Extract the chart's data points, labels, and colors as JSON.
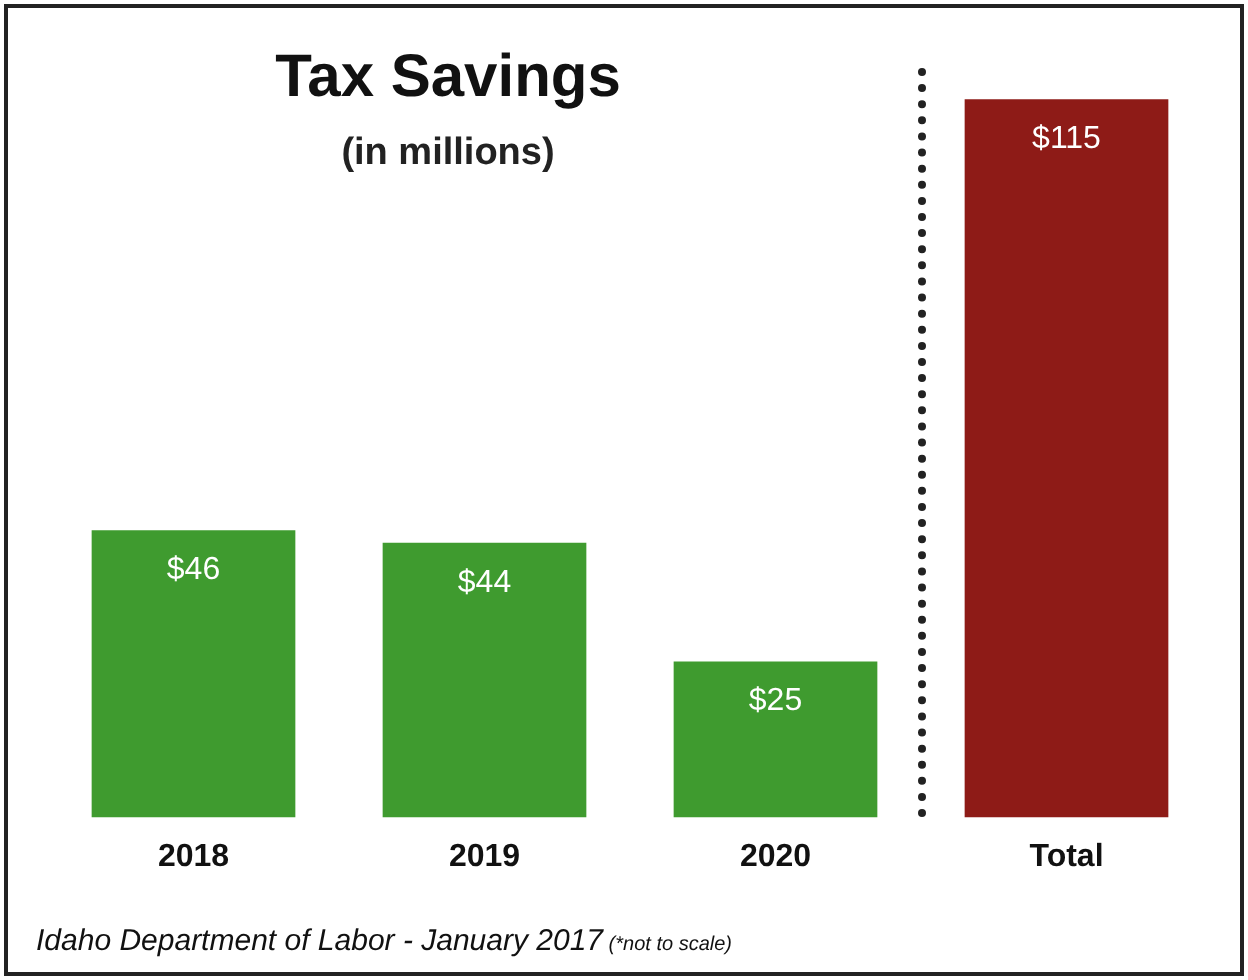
{
  "chart_data": {
    "type": "bar",
    "title": "Tax Savings",
    "subtitle": "(in millions)",
    "categories": [
      "2018",
      "2019",
      "2020",
      "Total"
    ],
    "values": [
      46,
      44,
      25,
      115
    ],
    "colors": [
      "#3f9b2f",
      "#3f9b2f",
      "#3f9b2f",
      "#8e1b17"
    ],
    "value_labels": [
      "$46",
      "$44",
      "$25",
      "$115"
    ],
    "annotations": [
      "Idaho Department of Labor - January 2017",
      "(*not to scale)"
    ],
    "legend": false,
    "grid": false
  }
}
